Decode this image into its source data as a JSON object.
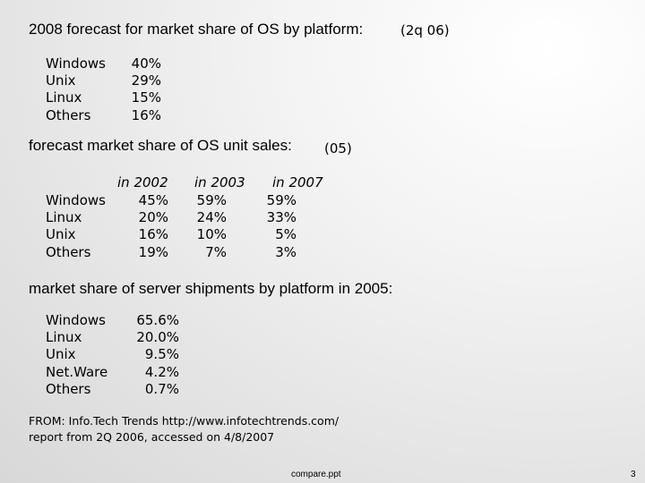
{
  "section1": {
    "title": "2008 forecast for market share of OS by platform:",
    "note": "(2q 06)",
    "rows": [
      {
        "label": "Windows",
        "value": "40%"
      },
      {
        "label": "Unix",
        "value": "29%"
      },
      {
        "label": "Linux",
        "value": "15%"
      },
      {
        "label": "Others",
        "value": "16%"
      }
    ]
  },
  "section2": {
    "title": "forecast market share of OS unit sales:",
    "note": "(05)",
    "years": [
      "in 2002",
      "in 2003",
      "in 2007"
    ],
    "rows": [
      {
        "label": "Windows",
        "values": [
          "45%",
          "59%",
          "59%"
        ]
      },
      {
        "label": "Linux",
        "values": [
          "20%",
          "24%",
          "33%"
        ]
      },
      {
        "label": "Unix",
        "values": [
          "16%",
          "10%",
          "5%"
        ]
      },
      {
        "label": "Others",
        "values": [
          "19%",
          "7%",
          "3%"
        ]
      }
    ]
  },
  "section3": {
    "title": "market share of server shipments by platform in 2005:",
    "rows": [
      {
        "label": "Windows",
        "value": "65.6%"
      },
      {
        "label": "Linux",
        "value": "20.0%"
      },
      {
        "label": "Unix",
        "value": "9.5%"
      },
      {
        "label": "Net.Ware",
        "value": "4.2%"
      },
      {
        "label": "Others",
        "value": "0.7%"
      }
    ]
  },
  "source": {
    "line1": "FROM: Info.Tech Trends http://www.infotechtrends.com/",
    "line2": "report from 2Q 2006, accessed on 4/8/2007"
  },
  "footer": {
    "filename": "compare.ppt",
    "page_number": "3"
  }
}
